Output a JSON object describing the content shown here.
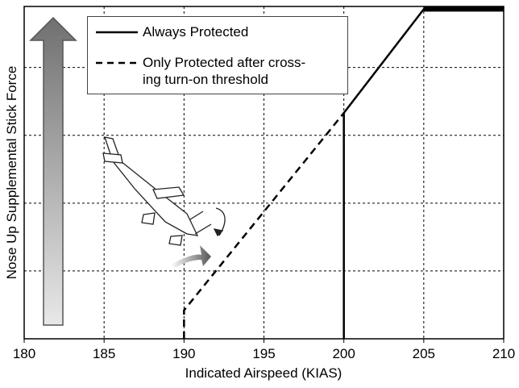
{
  "chart_data": {
    "type": "line",
    "x_label": "Indicated Airspeed (KIAS)",
    "y_label": "Nose Up Supplemental Stick Force",
    "xlim": [
      180,
      210
    ],
    "xticks": [
      180,
      185,
      190,
      195,
      200,
      205,
      210
    ],
    "ylim": [
      0,
      4.9
    ],
    "ygrid": [
      1,
      2,
      3,
      4
    ],
    "grid": true,
    "series": [
      {
        "name": "Always Protected",
        "color": "#000000",
        "dash": "solid",
        "x": [
          200,
          200,
          205,
          210
        ],
        "values": [
          0,
          3.33,
          4.86,
          4.86
        ]
      },
      {
        "name": "Only Protected after cross-\ning turn-on threshold",
        "color": "#000000",
        "dash": "dashed",
        "x": [
          190,
          190,
          200
        ],
        "values": [
          0,
          0.42,
          3.33
        ]
      }
    ]
  }
}
